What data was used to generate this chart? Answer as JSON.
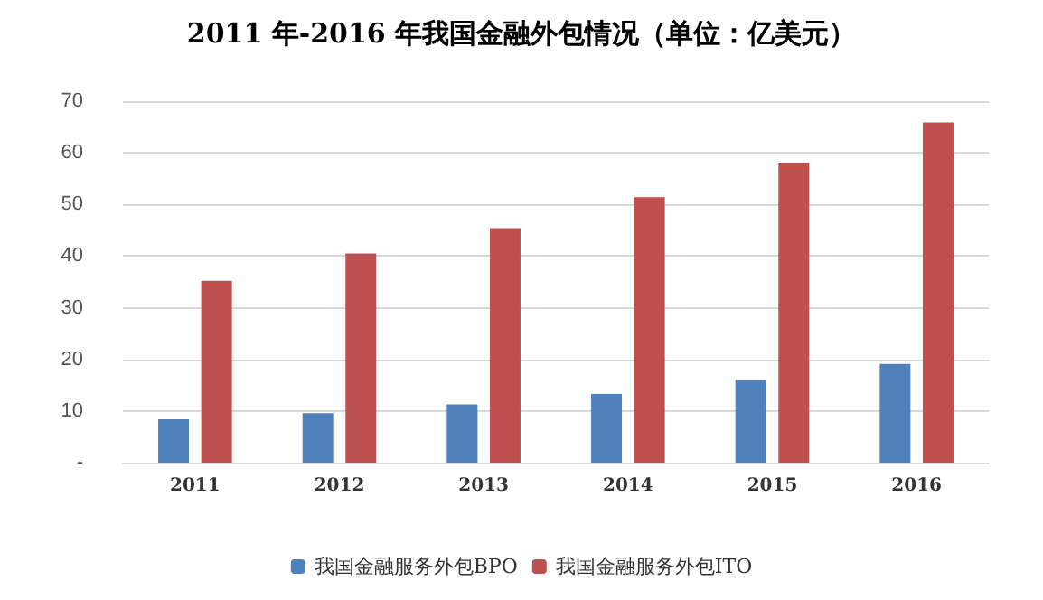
{
  "chart_data": {
    "type": "bar",
    "title": "2011 年-2016 年我国金融外包情况（单位：亿美元）",
    "categories": [
      "2011",
      "2012",
      "2013",
      "2014",
      "2015",
      "2016"
    ],
    "series": [
      {
        "name": "我国金融服务外包BPO",
        "color": "#4f81bd",
        "values": [
          8.4,
          9.6,
          11.3,
          13.3,
          16.0,
          19.1
        ]
      },
      {
        "name": "我国金融服务外包ITO",
        "color": "#c0504d",
        "values": [
          35.2,
          40.5,
          45.4,
          51.4,
          58.1,
          65.9
        ]
      }
    ],
    "ylim": [
      0,
      70
    ],
    "yticks": [
      {
        "value": 0,
        "label": "-"
      },
      10,
      20,
      30,
      40,
      50,
      60,
      70
    ],
    "grid": "y",
    "legend": "bottom"
  }
}
